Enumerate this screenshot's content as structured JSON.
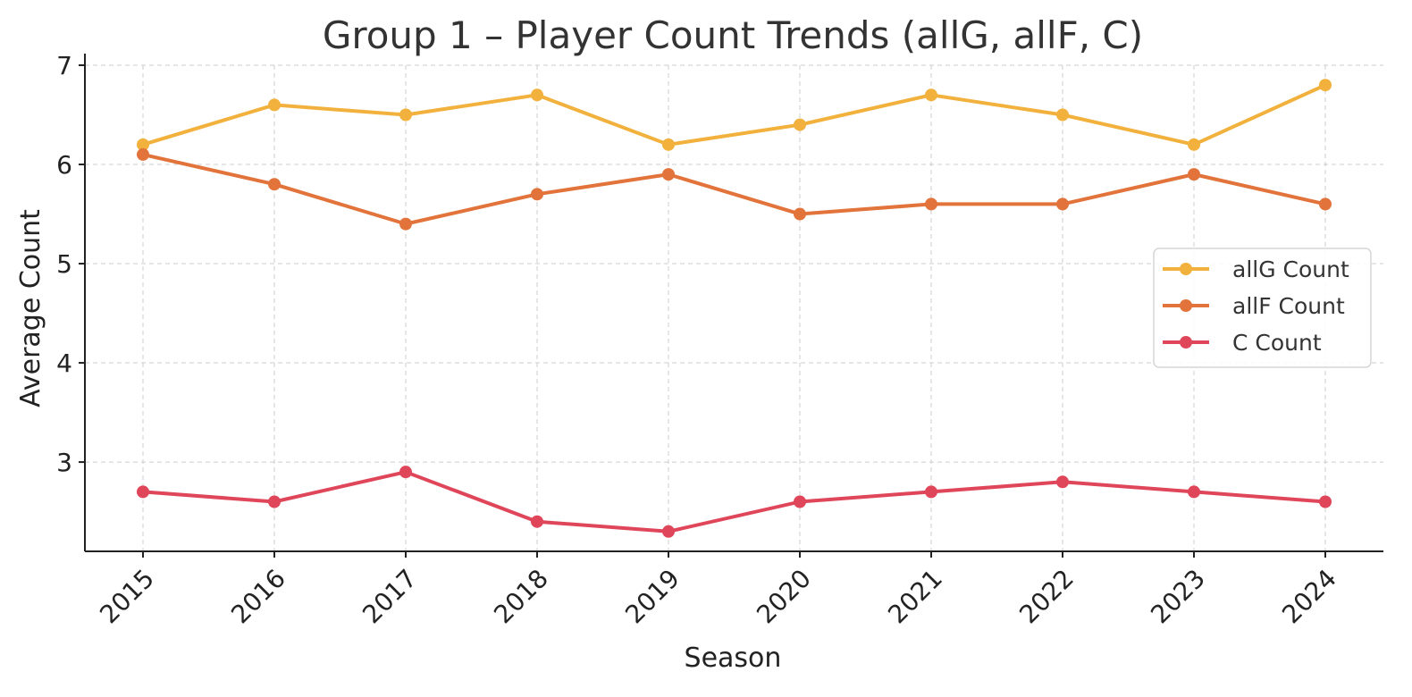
{
  "chart_data": {
    "type": "line",
    "title": "Group 1 – Player Count Trends (allG, allF, C)",
    "xlabel": "Season",
    "ylabel": "Average Count",
    "categories": [
      "2015",
      "2016",
      "2017",
      "2018",
      "2019",
      "2020",
      "2021",
      "2022",
      "2023",
      "2024"
    ],
    "ylim": [
      2.1,
      7.0
    ],
    "yticks": [
      "3",
      "4",
      "5",
      "6",
      "7"
    ],
    "grid": true,
    "legend_position": "right",
    "series": [
      {
        "name": "allG Count",
        "color": "#f2b13d",
        "values": [
          6.2,
          6.6,
          6.5,
          6.7,
          6.2,
          6.4,
          6.7,
          6.5,
          6.2,
          6.8
        ]
      },
      {
        "name": "allF Count",
        "color": "#e2733a",
        "values": [
          6.1,
          5.8,
          5.4,
          5.7,
          5.9,
          5.5,
          5.6,
          5.6,
          5.9,
          5.6
        ]
      },
      {
        "name": "C Count",
        "color": "#e0465a",
        "values": [
          2.7,
          2.6,
          2.9,
          2.4,
          2.3,
          2.6,
          2.7,
          2.8,
          2.7,
          2.6
        ]
      }
    ]
  }
}
